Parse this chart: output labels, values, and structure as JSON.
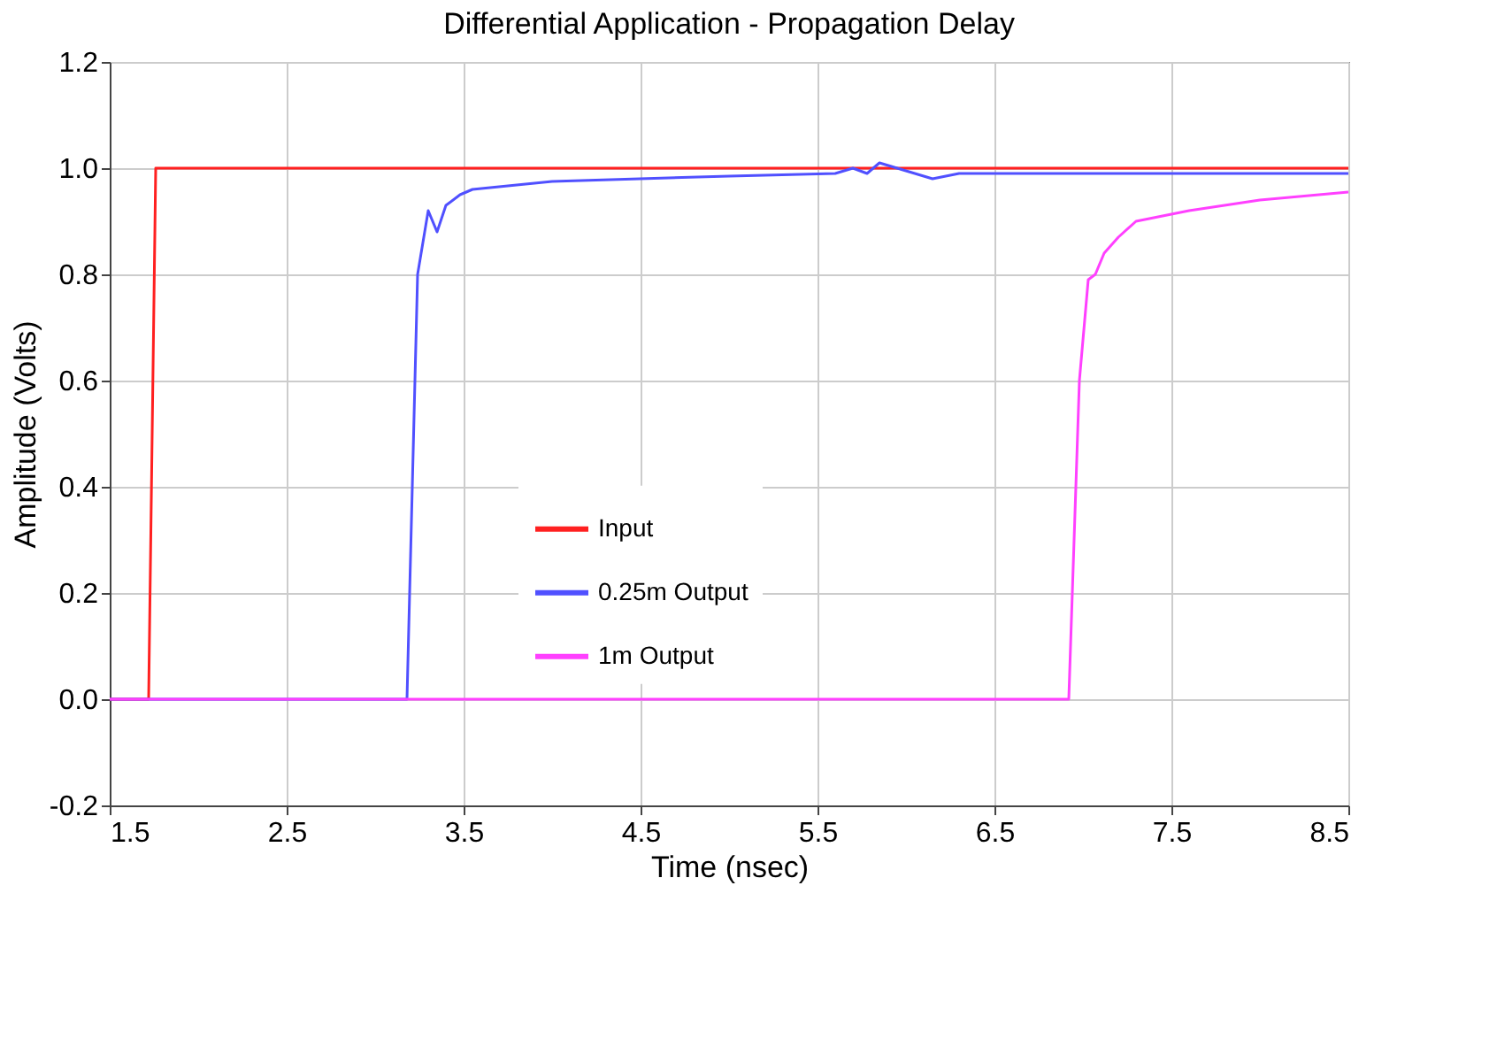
{
  "chart_data": {
    "type": "line",
    "title": "Differential Application - Propagation Delay",
    "xlabel": "Time (nsec)",
    "ylabel": "Amplitude (Volts)",
    "xlim": [
      1.5,
      8.5
    ],
    "ylim": [
      -0.2,
      1.2
    ],
    "xticks": [
      1.5,
      2.5,
      3.5,
      4.5,
      5.5,
      6.5,
      7.5,
      8.5
    ],
    "yticks": [
      {
        "value": -0.2,
        "label": "-0.2"
      },
      {
        "value": 0,
        "label": "0.0"
      },
      {
        "value": 0.2,
        "label": "0.2"
      },
      {
        "value": 0.4,
        "label": "0.4"
      },
      {
        "value": 0.6,
        "label": "0.6"
      },
      {
        "value": 0.8,
        "label": "0.8"
      },
      {
        "value": 1,
        "label": "1.0"
      },
      {
        "value": 1.2,
        "label": "1.2"
      }
    ],
    "grid": true,
    "legend": "bottom",
    "marker": "none",
    "line_style": "solid",
    "series": [
      {
        "name": "Input",
        "color": "#ff2020",
        "x": [
          1.5,
          1.72,
          1.76,
          8.5
        ],
        "values": [
          0,
          0,
          1,
          1
        ]
      },
      {
        "name": "0.25m Output",
        "color": "#5050ff",
        "x": [
          1.5,
          3.18,
          3.24,
          3.3,
          3.35,
          3.4,
          3.48,
          3.55,
          4.0,
          5.0,
          5.6,
          5.7,
          5.78,
          5.85,
          5.95,
          6.05,
          6.15,
          6.3,
          8.5
        ],
        "values": [
          0,
          0,
          0.8,
          0.92,
          0.88,
          0.93,
          0.95,
          0.96,
          0.975,
          0.985,
          0.99,
          1.0,
          0.99,
          1.01,
          1.0,
          0.99,
          0.98,
          0.99,
          0.99
        ]
      },
      {
        "name": "1m Output",
        "color": "#ff40ff",
        "x": [
          1.5,
          6.92,
          6.98,
          7.03,
          7.07,
          7.12,
          7.2,
          7.3,
          7.6,
          8.0,
          8.5
        ],
        "values": [
          0,
          0,
          0.6,
          0.79,
          0.8,
          0.84,
          0.87,
          0.9,
          0.92,
          0.94,
          0.955
        ]
      }
    ]
  }
}
